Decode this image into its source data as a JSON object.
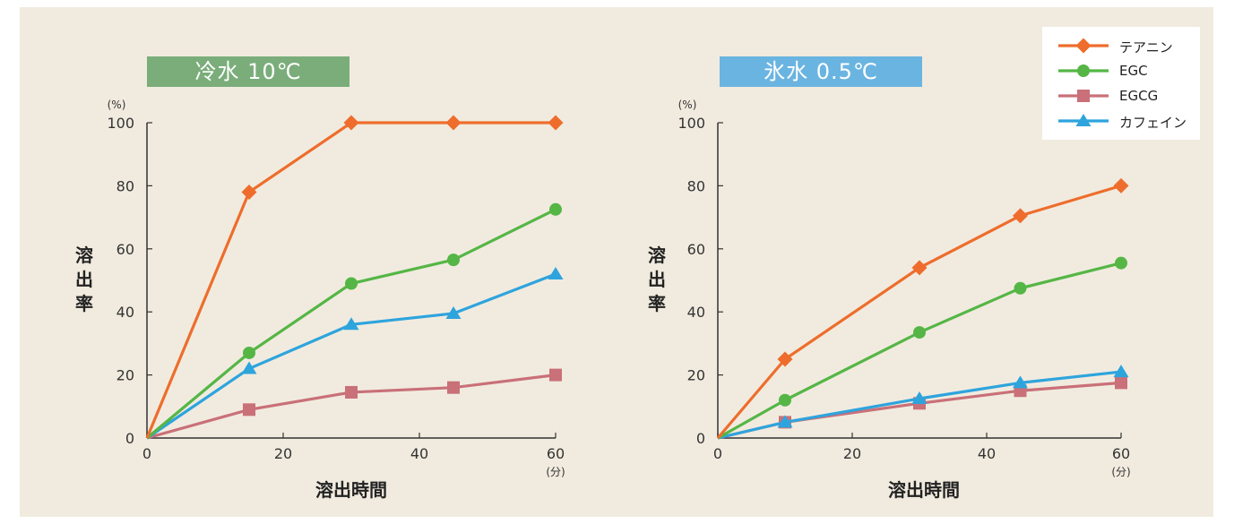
{
  "legend": [
    {
      "name": "テアニン",
      "color": "#ee6d2c",
      "marker": "diamond"
    },
    {
      "name": "EGC",
      "color": "#55b646",
      "marker": "circle"
    },
    {
      "name": "EGCG",
      "color": "#c97078",
      "marker": "square"
    },
    {
      "name": "カフェイン",
      "color": "#2ea4dd",
      "marker": "triangle"
    }
  ],
  "chart_data": [
    {
      "type": "line",
      "title": "冷水 10℃",
      "xlabel": "溶出時間",
      "ylabel": "溶出率",
      "y_unit": "(%)",
      "x_unit": "(分)",
      "xlim": [
        0,
        60
      ],
      "ylim": [
        0,
        100
      ],
      "xticks": [
        0,
        20,
        40,
        60
      ],
      "yticks": [
        0,
        20,
        40,
        60,
        80,
        100
      ],
      "grid": false,
      "series": [
        {
          "name": "テアニン",
          "x": [
            0,
            15,
            30,
            45,
            60
          ],
          "values": [
            0,
            78,
            100,
            100,
            100
          ]
        },
        {
          "name": "EGC",
          "x": [
            0,
            15,
            30,
            45,
            60
          ],
          "values": [
            0,
            27,
            49,
            56.5,
            72.5
          ]
        },
        {
          "name": "EGCG",
          "x": [
            0,
            15,
            30,
            45,
            60
          ],
          "values": [
            0,
            9,
            14.5,
            16,
            20
          ]
        },
        {
          "name": "カフェイン",
          "x": [
            0,
            15,
            30,
            45,
            60
          ],
          "values": [
            0,
            22,
            36,
            39.5,
            52
          ]
        }
      ]
    },
    {
      "type": "line",
      "title": "氷水 0.5℃",
      "xlabel": "溶出時間",
      "ylabel": "溶出率",
      "y_unit": "(%)",
      "x_unit": "(分)",
      "xlim": [
        0,
        60
      ],
      "ylim": [
        0,
        100
      ],
      "xticks": [
        0,
        20,
        40,
        60
      ],
      "yticks": [
        0,
        20,
        40,
        60,
        80,
        100
      ],
      "grid": false,
      "series": [
        {
          "name": "テアニン",
          "x": [
            0,
            10,
            30,
            45,
            60
          ],
          "values": [
            0,
            25,
            54,
            70.5,
            80
          ]
        },
        {
          "name": "EGC",
          "x": [
            0,
            10,
            30,
            45,
            60
          ],
          "values": [
            0,
            12,
            33.5,
            47.5,
            55.5
          ]
        },
        {
          "name": "EGCG",
          "x": [
            0,
            10,
            30,
            45,
            60
          ],
          "values": [
            0,
            5,
            11,
            15,
            17.5
          ]
        },
        {
          "name": "カフェイン",
          "x": [
            0,
            10,
            30,
            45,
            60
          ],
          "values": [
            0,
            5,
            12.5,
            17.5,
            21
          ]
        }
      ]
    }
  ]
}
